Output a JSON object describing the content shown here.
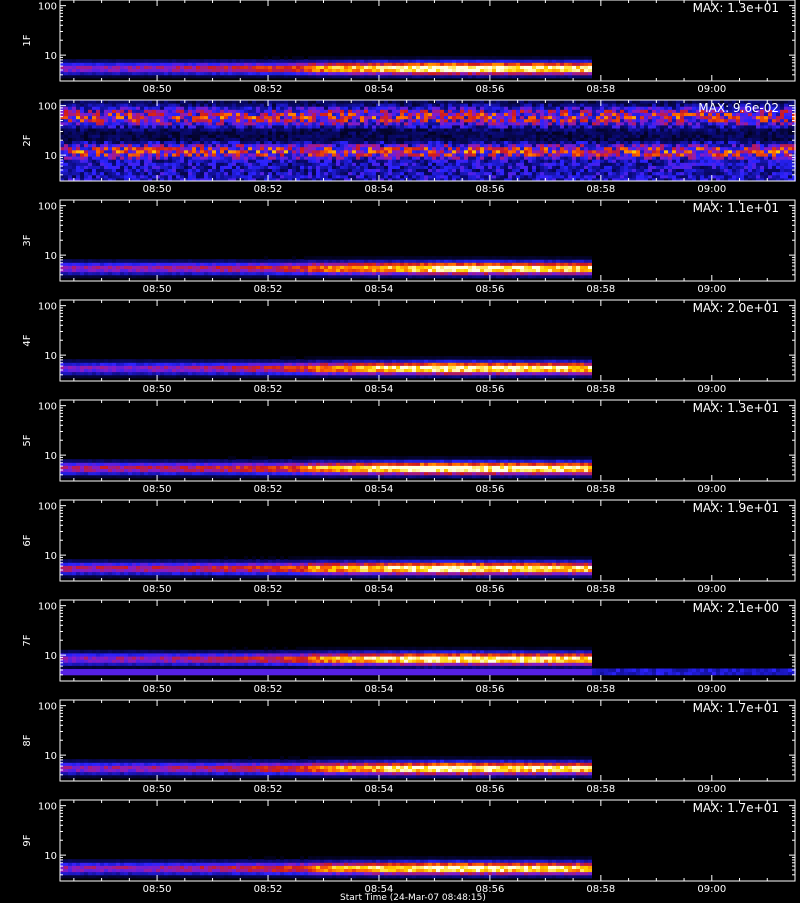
{
  "chart_data": {
    "type": "heatmap",
    "panel_count": 9,
    "x_axis": {
      "kind": "time",
      "range": [
        "08:48:15",
        "09:01:30"
      ],
      "tick_labels": [
        "08:50",
        "08:52",
        "08:54",
        "08:56",
        "08:58",
        "09:00"
      ],
      "minor_ticks_per_major": 4
    },
    "y_axis": {
      "scale": "log",
      "range": [
        3,
        130
      ],
      "tick_labels": [
        "10",
        "100"
      ],
      "tick_values": [
        10,
        100
      ]
    },
    "colormap": [
      "#000000",
      "#0a0a78",
      "#2a23ff",
      "#8a1cc4",
      "#d11a1a",
      "#ff6a00",
      "#ffd400",
      "#ffffe0"
    ],
    "panels": [
      {
        "label": "1F",
        "max_text": "MAX: 1.3e+01",
        "pattern": "band",
        "band_center": 5.5,
        "data_end": "08:57:50",
        "peak_time": "08:55:00",
        "start_level": 0.45,
        "peak_level": 1.0
      },
      {
        "label": "2F",
        "max_text": "MAX: 9.6e-02",
        "pattern": "noise",
        "band_center": 12,
        "data_end": "09:01:30",
        "peak_time": "08:55:00",
        "start_level": 0.6,
        "peak_level": 0.8
      },
      {
        "label": "3F",
        "max_text": "MAX: 1.1e+01",
        "pattern": "band",
        "band_center": 5.5,
        "data_end": "08:57:50",
        "peak_time": "08:55:30",
        "start_level": 0.45,
        "peak_level": 0.95
      },
      {
        "label": "4F",
        "max_text": "MAX: 2.0e+01",
        "pattern": "band",
        "band_center": 5.5,
        "data_end": "08:57:50",
        "peak_time": "08:55:00",
        "start_level": 0.42,
        "peak_level": 0.95
      },
      {
        "label": "5F",
        "max_text": "MAX: 1.3e+01",
        "pattern": "band",
        "band_center": 5.5,
        "data_end": "08:57:50",
        "peak_time": "08:55:00",
        "start_level": 0.5,
        "peak_level": 1.0
      },
      {
        "label": "6F",
        "max_text": "MAX: 1.9e+01",
        "pattern": "band",
        "band_center": 5.5,
        "data_end": "08:57:50",
        "peak_time": "08:55:00",
        "start_level": 0.5,
        "peak_level": 0.95
      },
      {
        "label": "7F",
        "max_text": "MAX: 2.1e+00",
        "pattern": "band2",
        "band_center": 8.5,
        "data_end": "08:57:50",
        "peak_time": "08:55:00",
        "start_level": 0.45,
        "peak_level": 0.95
      },
      {
        "label": "8F",
        "max_text": "MAX: 1.7e+01",
        "pattern": "band",
        "band_center": 5.5,
        "data_end": "08:57:50",
        "peak_time": "08:55:00",
        "start_level": 0.45,
        "peak_level": 0.95
      },
      {
        "label": "9F",
        "max_text": "MAX: 1.7e+01",
        "pattern": "band",
        "band_center": 5.5,
        "data_end": "08:57:50",
        "peak_time": "08:55:00",
        "start_level": 0.45,
        "peak_level": 0.95
      }
    ]
  },
  "footer_text": "Start Time (24-Mar-07 08:48:15)"
}
